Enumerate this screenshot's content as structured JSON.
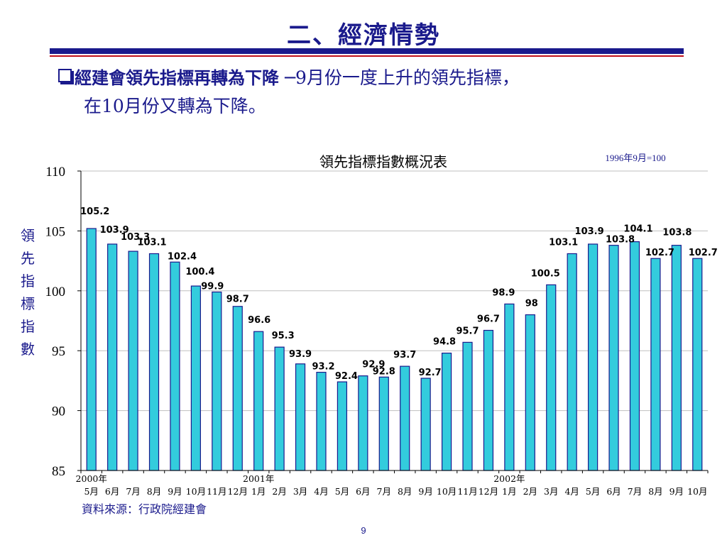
{
  "slide": {
    "title": "二、經濟情勢",
    "bullet_bold": "經建會領先指標再轉為下降",
    "bullet_rest": " ─9月份一度上升的領先指標，",
    "bullet_line2": "在10月份又轉為下降。",
    "source": "資料來源：行政院經建會",
    "page_number": "9"
  },
  "chart_data": {
    "type": "bar",
    "title": "領先指標指數概況表",
    "base_note": "1996年9月=100",
    "ylabel": "領先指標指數",
    "ylim": [
      85,
      110
    ],
    "yticks": [
      85,
      90,
      95,
      100,
      105,
      110
    ],
    "grid": true,
    "bar_color": "#33ccdd",
    "categories": [
      "5月",
      "6月",
      "7月",
      "8月",
      "9月",
      "10月",
      "11月",
      "12月",
      "1月",
      "2月",
      "3月",
      "4月",
      "5月",
      "6月",
      "7月",
      "8月",
      "9月",
      "10月",
      "11月",
      "12月",
      "1月",
      "2月",
      "3月",
      "4月",
      "5月",
      "6月",
      "7月",
      "8月",
      "9月",
      "10月"
    ],
    "year_labels": [
      {
        "index": 0,
        "label": "2000年"
      },
      {
        "index": 8,
        "label": "2001年"
      },
      {
        "index": 20,
        "label": "2002年"
      }
    ],
    "values": [
      105.2,
      103.9,
      103.3,
      103.1,
      102.4,
      100.4,
      99.9,
      98.7,
      96.6,
      95.3,
      93.9,
      93.2,
      92.4,
      92.9,
      92.8,
      93.7,
      92.7,
      94.8,
      95.7,
      96.7,
      98.9,
      98,
      100.5,
      103.1,
      103.9,
      103.8,
      104.1,
      102.7,
      103.8,
      102.7
    ]
  }
}
